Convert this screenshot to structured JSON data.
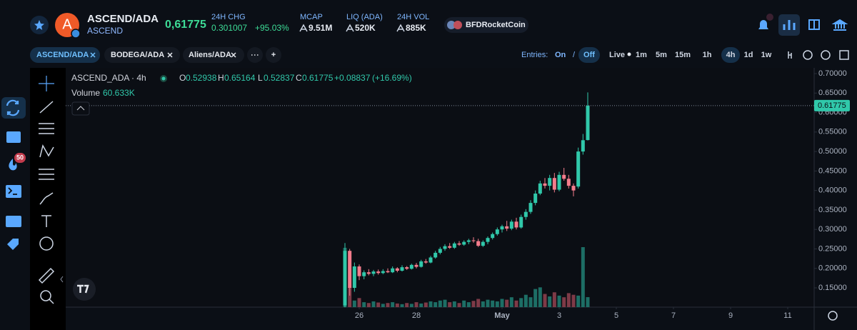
{
  "header": {
    "avatar": "A",
    "pair": "ASCEND/ADA",
    "token": "ASCEND",
    "price": "0,61775",
    "chg_label": "24H CHG",
    "chg_value": "0.301007",
    "chg_pct": "+95.03%",
    "mcap_label": "MCAP",
    "mcap": "9.51M",
    "liq_label": "LIQ (ADA)",
    "liq": "520K",
    "vol_label": "24H VOL",
    "vol": "885K",
    "promo": "BFDRocketCoin"
  },
  "tabs": [
    "ASCEND/ADA",
    "BODEGA/ADA",
    "Aliens/ADA"
  ],
  "add_tab": "+",
  "toolbar": {
    "entries_label": "Entries:",
    "on": "On",
    "slash": "/",
    "off": "Off",
    "live": "Live",
    "intervals": [
      "1m",
      "5m",
      "15m",
      "1h",
      "4h",
      "1d",
      "1w"
    ]
  },
  "sidebar": {
    "badge": "50"
  },
  "chart_data": {
    "type": "candlestick",
    "title": "ASCEND_ADA · 4h",
    "legend": {
      "o_label": "O",
      "h_label": "H",
      "l_label": "L",
      "c_label": "C",
      "change": "+0.08837",
      "change_pct": "(+16.69%)",
      "volume_label": "Volume",
      "volume_value": "60.633K"
    },
    "x": [
      25.5,
      25.667,
      25.833,
      26,
      26.167,
      26.333,
      26.5,
      26.667,
      26.833,
      27,
      27.167,
      27.333,
      27.5,
      27.667,
      27.833,
      28,
      28.167,
      28.333,
      28.5,
      28.667,
      28.833,
      29,
      29.167,
      29.333,
      29.5,
      29.667,
      29.833,
      30,
      30.167,
      30.333,
      30.5,
      30.667,
      30.833,
      31,
      31.167,
      31.333,
      31.5,
      31.667,
      31.833,
      32,
      32.167,
      32.333,
      32.5,
      32.667,
      32.833,
      33,
      33.167,
      33.333,
      33.5,
      33.667,
      33.833,
      34
    ],
    "open": [
      0.105,
      0.245,
      0.15,
      0.205,
      0.18,
      0.19,
      0.186,
      0.192,
      0.188,
      0.193,
      0.19,
      0.2,
      0.194,
      0.203,
      0.199,
      0.209,
      0.204,
      0.218,
      0.215,
      0.228,
      0.24,
      0.25,
      0.257,
      0.253,
      0.264,
      0.261,
      0.268,
      0.272,
      0.27,
      0.258,
      0.268,
      0.278,
      0.288,
      0.3,
      0.308,
      0.302,
      0.32,
      0.305,
      0.332,
      0.345,
      0.368,
      0.392,
      0.418,
      0.412,
      0.432,
      0.402,
      0.44,
      0.43,
      0.412,
      0.41,
      0.5,
      0.52938
    ],
    "high": [
      0.265,
      0.25,
      0.215,
      0.21,
      0.195,
      0.198,
      0.196,
      0.197,
      0.198,
      0.2,
      0.205,
      0.203,
      0.208,
      0.206,
      0.212,
      0.214,
      0.222,
      0.224,
      0.232,
      0.245,
      0.255,
      0.262,
      0.265,
      0.268,
      0.27,
      0.272,
      0.276,
      0.28,
      0.276,
      0.272,
      0.282,
      0.292,
      0.305,
      0.312,
      0.322,
      0.325,
      0.33,
      0.338,
      0.352,
      0.375,
      0.4,
      0.425,
      0.432,
      0.44,
      0.445,
      0.448,
      0.458,
      0.44,
      0.418,
      0.51,
      0.545,
      0.65164
    ],
    "low": [
      0.1,
      0.13,
      0.14,
      0.17,
      0.172,
      0.182,
      0.18,
      0.184,
      0.185,
      0.188,
      0.188,
      0.19,
      0.192,
      0.196,
      0.197,
      0.2,
      0.202,
      0.212,
      0.213,
      0.225,
      0.236,
      0.245,
      0.25,
      0.25,
      0.258,
      0.258,
      0.262,
      0.266,
      0.255,
      0.255,
      0.262,
      0.274,
      0.284,
      0.292,
      0.296,
      0.298,
      0.3,
      0.302,
      0.325,
      0.34,
      0.362,
      0.388,
      0.405,
      0.4,
      0.395,
      0.398,
      0.425,
      0.405,
      0.385,
      0.405,
      0.492,
      0.52837
    ],
    "close": [
      0.245,
      0.15,
      0.205,
      0.18,
      0.19,
      0.186,
      0.192,
      0.188,
      0.193,
      0.19,
      0.2,
      0.194,
      0.203,
      0.199,
      0.209,
      0.204,
      0.218,
      0.215,
      0.228,
      0.24,
      0.25,
      0.257,
      0.253,
      0.264,
      0.261,
      0.268,
      0.272,
      0.27,
      0.258,
      0.268,
      0.278,
      0.288,
      0.3,
      0.308,
      0.302,
      0.32,
      0.305,
      0.332,
      0.345,
      0.368,
      0.392,
      0.418,
      0.412,
      0.432,
      0.402,
      0.44,
      0.43,
      0.412,
      0.4,
      0.5,
      0.529,
      0.61775
    ],
    "volume": [
      360000,
      120000,
      40000,
      55000,
      30000,
      25000,
      35000,
      28000,
      20000,
      25000,
      30000,
      22000,
      18000,
      25000,
      20000,
      30000,
      22000,
      28000,
      35000,
      30000,
      40000,
      45000,
      30000,
      35000,
      25000,
      40000,
      30000,
      38000,
      50000,
      35000,
      45000,
      40000,
      35000,
      50000,
      45000,
      60000,
      40000,
      55000,
      75000,
      60000,
      110000,
      120000,
      80000,
      65000,
      90000,
      70000,
      60000,
      85000,
      75000,
      70000,
      364000,
      60633
    ],
    "xlim": [
      15.725,
      41.925
    ],
    "xticks": [
      {
        "value": 26,
        "label": "26"
      },
      {
        "value": 28,
        "label": "28"
      },
      {
        "value": 31,
        "label": "May"
      },
      {
        "value": 33,
        "label": "3"
      },
      {
        "value": 35,
        "label": "5"
      },
      {
        "value": 37,
        "label": "7"
      },
      {
        "value": 39,
        "label": "9"
      },
      {
        "value": 41,
        "label": "11"
      }
    ],
    "ylim": [
      0.1005,
      0.7147
    ],
    "yticks": [
      {
        "value": 0.15,
        "label": "0.15000"
      },
      {
        "value": 0.2,
        "label": "0.20000"
      },
      {
        "value": 0.25,
        "label": "0.25000"
      },
      {
        "value": 0.3,
        "label": "0.30000"
      },
      {
        "value": 0.35,
        "label": "0.35000"
      },
      {
        "value": 0.4,
        "label": "0.40000"
      },
      {
        "value": 0.45,
        "label": "0.45000"
      },
      {
        "value": 0.5,
        "label": "0.50000"
      },
      {
        "value": 0.55,
        "label": "0.55000"
      },
      {
        "value": 0.6,
        "label": "0.60000"
      },
      {
        "value": 0.65,
        "label": "0.65000"
      },
      {
        "value": 0.7,
        "label": "0.70000"
      }
    ],
    "grid": false,
    "up_color": "#30c8aa",
    "down_color": "#f47c8c",
    "volume_up_color": "#1d6e65",
    "volume_down_color": "#7e3a47"
  }
}
